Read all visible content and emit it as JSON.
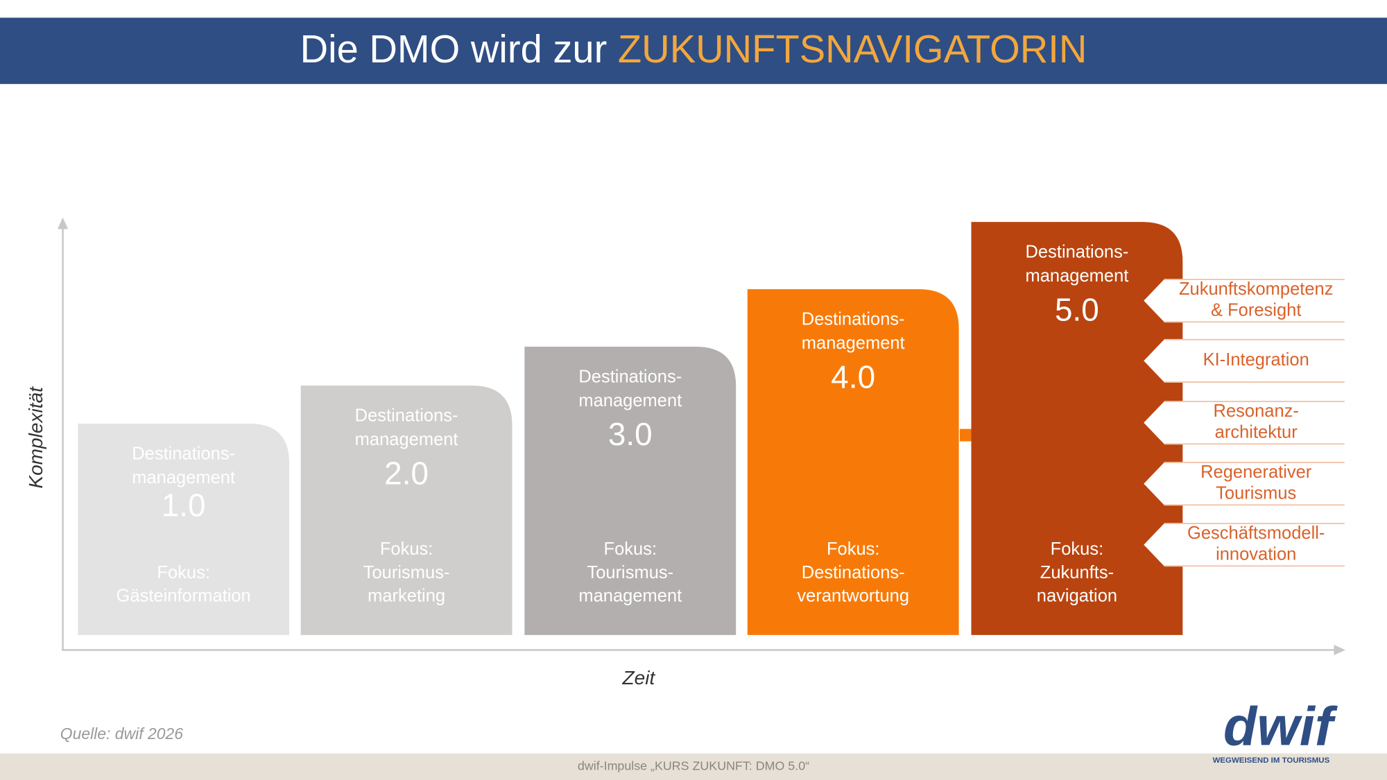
{
  "header": {
    "title_prefix": "Die DMO wird zur",
    "title_highlight": "ZUKUNFTSNAVIGATORIN"
  },
  "axes": {
    "y_label": "Komplexität",
    "x_label": "Zeit"
  },
  "stages": [
    {
      "title_lines": [
        "Destinations-",
        "management"
      ],
      "version": "1.0",
      "focus_lines": [
        "Fokus:",
        "Gästeinformation"
      ]
    },
    {
      "title_lines": [
        "Destinations-",
        "management"
      ],
      "version": "2.0",
      "focus_lines": [
        "Fokus:",
        "Tourismus-",
        "marketing"
      ]
    },
    {
      "title_lines": [
        "Destinations-",
        "management"
      ],
      "version": "3.0",
      "focus_lines": [
        "Fokus:",
        "Tourismus-",
        "management"
      ]
    },
    {
      "title_lines": [
        "Destinations-",
        "management"
      ],
      "version": "4.0",
      "focus_lines": [
        "Fokus:",
        "Destinations-",
        "verantwortung"
      ]
    },
    {
      "title_lines": [
        "Destinations-",
        "management"
      ],
      "version": "5.0",
      "focus_lines": [
        "Fokus:",
        "Zukunfts-",
        "navigation"
      ]
    }
  ],
  "capabilities": [
    {
      "lines": [
        "Zukunftskompetenz",
        "& Foresight"
      ]
    },
    {
      "lines": [
        "KI-Integration"
      ]
    },
    {
      "lines": [
        "Resonanz-",
        "architektur"
      ]
    },
    {
      "lines": [
        "Regenerativer",
        "Tourismus"
      ]
    },
    {
      "lines": [
        "Geschäftsmodell-",
        "innovation"
      ]
    }
  ],
  "source": "Quelle: dwif 2026",
  "footer": "dwif-Impulse „KURS ZUKUNFT: DMO 5.0“",
  "logo": {
    "name": "dwif",
    "tagline": "WEGWEISEND IM TOURISMUS"
  }
}
